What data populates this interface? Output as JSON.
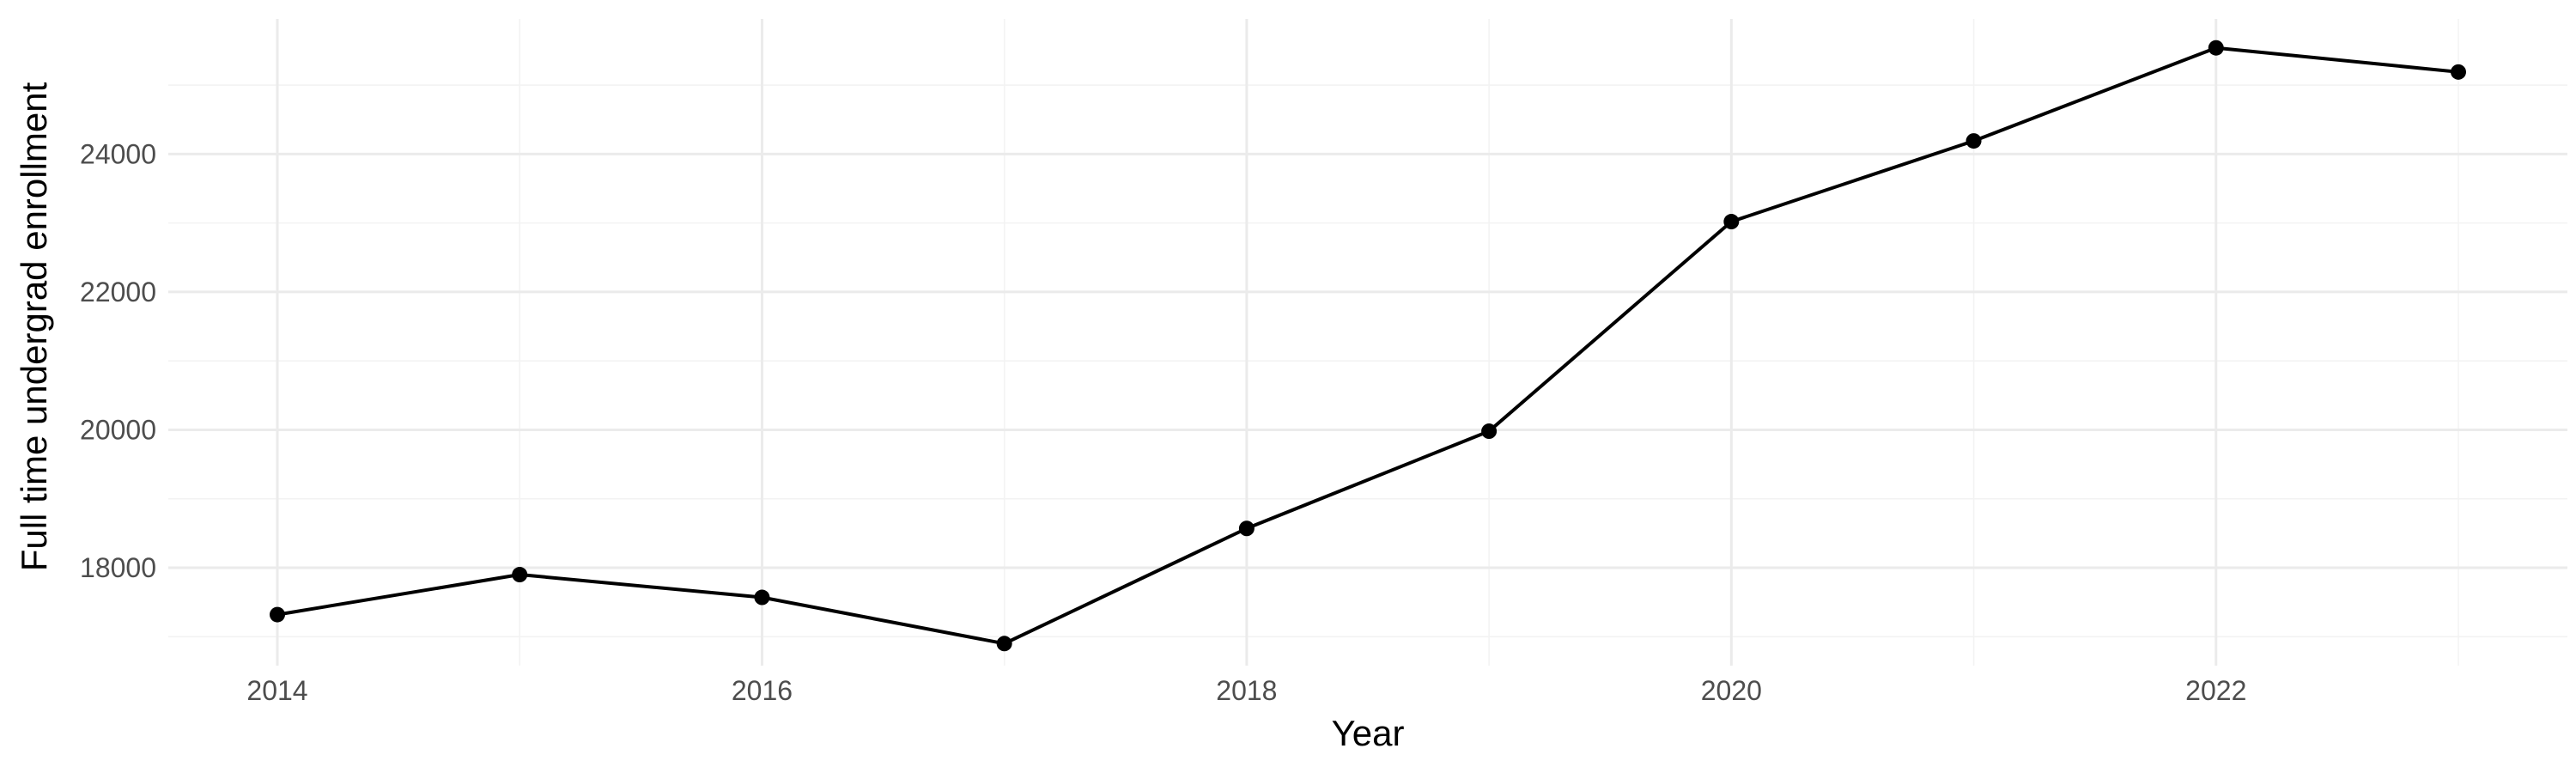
{
  "chart_data": {
    "type": "line",
    "xlabel": "Year",
    "ylabel": "Full time undergrad enrollment",
    "x": [
      2014,
      2015,
      2016,
      2017,
      2018,
      2019,
      2020,
      2021,
      2022,
      2023
    ],
    "series": [
      {
        "values": [
          17320,
          17900,
          17570,
          16900,
          18570,
          19980,
          23020,
          24190,
          25540,
          25190
        ]
      }
    ],
    "xlim": [
      2013.55,
      2023.45
    ],
    "ylim": [
      16580,
      25960
    ],
    "x_ticks": [
      2014,
      2016,
      2018,
      2020,
      2022
    ],
    "x_tick_labels": [
      "2014",
      "2016",
      "2018",
      "2020",
      "2022"
    ],
    "y_ticks": [
      18000,
      20000,
      22000,
      24000
    ],
    "y_tick_labels": [
      "18000",
      "20000",
      "22000",
      "24000"
    ],
    "x_minor_ticks": [
      2015,
      2017,
      2019,
      2021,
      2023
    ],
    "y_minor_ticks": [
      17000,
      19000,
      21000,
      23000,
      25000
    ],
    "grid": true,
    "legend": "none",
    "line_color": "#000000",
    "point_color": "#000000",
    "grid_major_color": "#ebebeb",
    "grid_minor_color": "#f3f3f3",
    "background": "#ffffff"
  }
}
